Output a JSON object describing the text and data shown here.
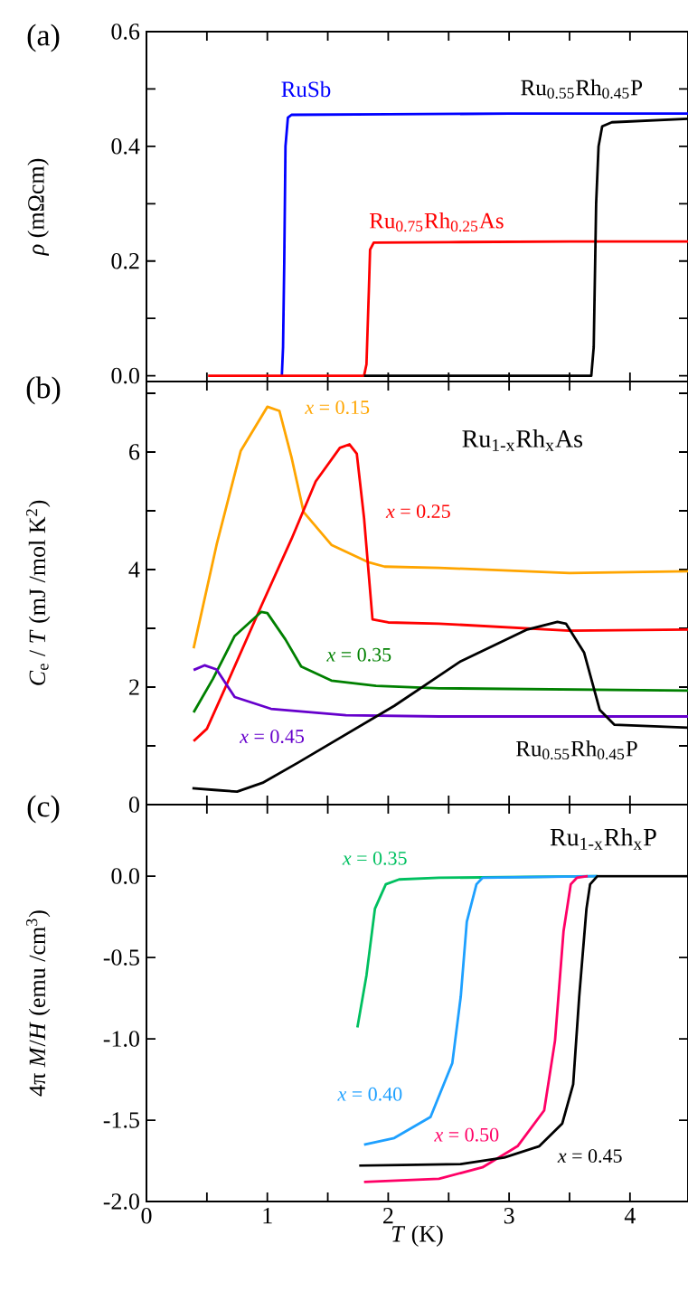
{
  "chart_data": [
    {
      "type": "line",
      "ylabel": "*ρ* (mΩcm)",
      "xlim": [
        0,
        4.48
      ],
      "ylim": [
        -0.01,
        0.6
      ],
      "tick_labels": "y",
      "xticks": [
        0,
        {
          "value": 0.5,
          "label": null
        },
        1,
        {
          "value": 1.5,
          "label": null
        },
        2,
        {
          "value": 2.5,
          "label": null
        },
        3,
        {
          "value": 3.5,
          "label": null
        },
        4
      ],
      "yticks": [
        {
          "value": 0,
          "label": "0.0"
        },
        {
          "value": 0.1,
          "label": null
        },
        0.2,
        {
          "value": 0.3,
          "label": null
        },
        0.4,
        {
          "value": 0.5,
          "label": null
        },
        0.6
      ],
      "annotations": [
        "(a)"
      ],
      "series": [
        {
          "name": "RuSb",
          "color": "#0000ff",
          "x": [
            1.12,
            1.13,
            1.14,
            1.15,
            1.17,
            1.2,
            2,
            3,
            4.48
          ],
          "values": [
            0.0,
            0.05,
            0.2,
            0.4,
            0.45,
            0.455,
            0.456,
            0.457,
            0.457
          ]
        },
        {
          "name": "Ru$_{0.75}$Rh$_{0.25}$As",
          "color": "#ff0000",
          "x": [
            0.51,
            1.8,
            1.82,
            1.84,
            1.85,
            1.88,
            2.5,
            3.5,
            4.48
          ],
          "values": [
            0.0,
            0.0,
            0.02,
            0.15,
            0.22,
            0.232,
            0.233,
            0.234,
            0.234
          ]
        },
        {
          "name": "Ru$_{0.55}$Rh$_{0.45}$P",
          "color": "#000000",
          "x": [
            1.8,
            3.68,
            3.7,
            3.72,
            3.74,
            3.77,
            3.85,
            4.48
          ],
          "values": [
            0.0,
            0.0,
            0.05,
            0.3,
            0.4,
            0.435,
            0.442,
            0.448
          ]
        }
      ]
    },
    {
      "type": "line",
      "ylabel": "*C*$_{e}$ / *T* (mJ /mol K$^{2}$)",
      "xlim": [
        0,
        4.48
      ],
      "ylim": [
        0,
        7.2
      ],
      "tick_labels": "y",
      "xticks": [
        0,
        {
          "value": 0.5,
          "label": null
        },
        1,
        {
          "value": 1.5,
          "label": null
        },
        2,
        {
          "value": 2.5,
          "label": null
        },
        3,
        {
          "value": 3.5,
          "label": null
        },
        4
      ],
      "yticks": [
        0,
        {
          "value": 1,
          "label": null
        },
        2,
        {
          "value": 3,
          "label": null
        },
        4,
        {
          "value": 5,
          "label": null
        },
        6,
        {
          "value": 7,
          "label": null
        }
      ],
      "annotations": [
        "(b)",
        "Ru$_{1-x}$Rh$_{x}$As"
      ],
      "series": [
        {
          "name": "*x* = 0.15",
          "color": "#ffa500",
          "x": [
            0.39,
            0.58,
            0.78,
            1.0,
            1.1,
            1.2,
            1.3,
            1.53,
            1.83,
            1.97,
            2.42,
            3.5,
            4.48
          ],
          "values": [
            2.66,
            4.42,
            6.02,
            6.77,
            6.7,
            5.91,
            4.98,
            4.42,
            4.13,
            4.05,
            4.03,
            3.94,
            3.97
          ]
        },
        {
          "name": "*x* = 0.25",
          "color": "#ff0000",
          "x": [
            0.39,
            0.5,
            0.65,
            0.95,
            1.2,
            1.4,
            1.6,
            1.68,
            1.74,
            1.8,
            1.87,
            2.0,
            2.42,
            3.5,
            4.48
          ],
          "values": [
            1.08,
            1.29,
            1.98,
            3.38,
            4.52,
            5.5,
            6.07,
            6.13,
            5.97,
            4.88,
            3.15,
            3.1,
            3.08,
            2.96,
            2.98
          ]
        },
        {
          "name": "*x* = 0.35",
          "color": "#008000",
          "x": [
            0.39,
            0.55,
            0.73,
            0.95,
            1.0,
            1.15,
            1.28,
            1.53,
            1.9,
            2.42,
            4.48
          ],
          "values": [
            1.57,
            2.14,
            2.87,
            3.28,
            3.26,
            2.81,
            2.35,
            2.11,
            2.02,
            1.98,
            1.94
          ]
        },
        {
          "name": "*x* = 0.45",
          "color": "#6600cc",
          "x": [
            0.39,
            0.48,
            0.58,
            0.73,
            1.03,
            1.65,
            2.42,
            4.48
          ],
          "values": [
            2.29,
            2.37,
            2.3,
            1.83,
            1.63,
            1.52,
            1.5,
            1.5
          ]
        },
        {
          "name": "Ru$_{0.55}$Rh$_{0.45}$P",
          "color": "#000000",
          "x": [
            0.38,
            0.56,
            0.75,
            0.96,
            1.25,
            2.05,
            2.6,
            3.15,
            3.4,
            3.47,
            3.62,
            3.75,
            3.87,
            4.48
          ],
          "values": [
            0.28,
            0.25,
            0.22,
            0.37,
            0.71,
            1.68,
            2.44,
            2.98,
            3.11,
            3.08,
            2.59,
            1.61,
            1.36,
            1.31
          ]
        }
      ]
    },
    {
      "type": "line",
      "xlabel": "*T* (K)",
      "ylabel": "4π *M*/*H* (emu /cm$^{3}$)",
      "xlim": [
        0,
        4.48
      ],
      "ylim": [
        -2.0,
        0.44
      ],
      "xticks": [
        0,
        {
          "value": 0.5,
          "label": null
        },
        1,
        {
          "value": 1.5,
          "label": null
        },
        2,
        {
          "value": 2.5,
          "label": null
        },
        3,
        {
          "value": 3.5,
          "label": null
        },
        4
      ],
      "yticks": [
        {
          "value": 0,
          "label": "0.0"
        },
        -0.5,
        {
          "value": -1,
          "label": "-1.0"
        },
        -1.5,
        {
          "value": -2,
          "label": "-2.0"
        }
      ],
      "annotations": [
        "(c)",
        "Ru$_{1-x}$Rh$_{x}$P"
      ],
      "series": [
        {
          "name": "*x* = 0.35",
          "color": "#00c060",
          "x": [
            1.745,
            1.82,
            1.89,
            1.98,
            2.09,
            2.42,
            3.73
          ],
          "values": [
            -0.93,
            -0.61,
            -0.2,
            -0.05,
            -0.02,
            -0.01,
            0.0
          ]
        },
        {
          "name": "*x* = 0.40",
          "color": "#1ea0ff",
          "x": [
            1.8,
            2.05,
            2.35,
            2.53,
            2.6,
            2.65,
            2.73,
            2.78,
            3.73
          ],
          "values": [
            -1.65,
            -1.61,
            -1.48,
            -1.15,
            -0.74,
            -0.28,
            -0.05,
            -0.01,
            0.0
          ]
        },
        {
          "name": "*x* = 0.50",
          "color": "#ff0066",
          "x": [
            1.8,
            2.42,
            2.78,
            3.07,
            3.29,
            3.38,
            3.45,
            3.51,
            3.56,
            3.65
          ],
          "values": [
            -1.88,
            -1.86,
            -1.79,
            -1.66,
            -1.44,
            -1.01,
            -0.34,
            -0.05,
            -0.01,
            0.0
          ]
        },
        {
          "name": "*x* = 0.45",
          "color": "#000000",
          "x": [
            1.76,
            2.6,
            2.96,
            3.25,
            3.44,
            3.53,
            3.58,
            3.64,
            3.67,
            3.73,
            4.48
          ],
          "values": [
            -1.78,
            -1.77,
            -1.73,
            -1.66,
            -1.52,
            -1.28,
            -0.74,
            -0.2,
            -0.05,
            0.0,
            0.0
          ]
        }
      ]
    }
  ]
}
